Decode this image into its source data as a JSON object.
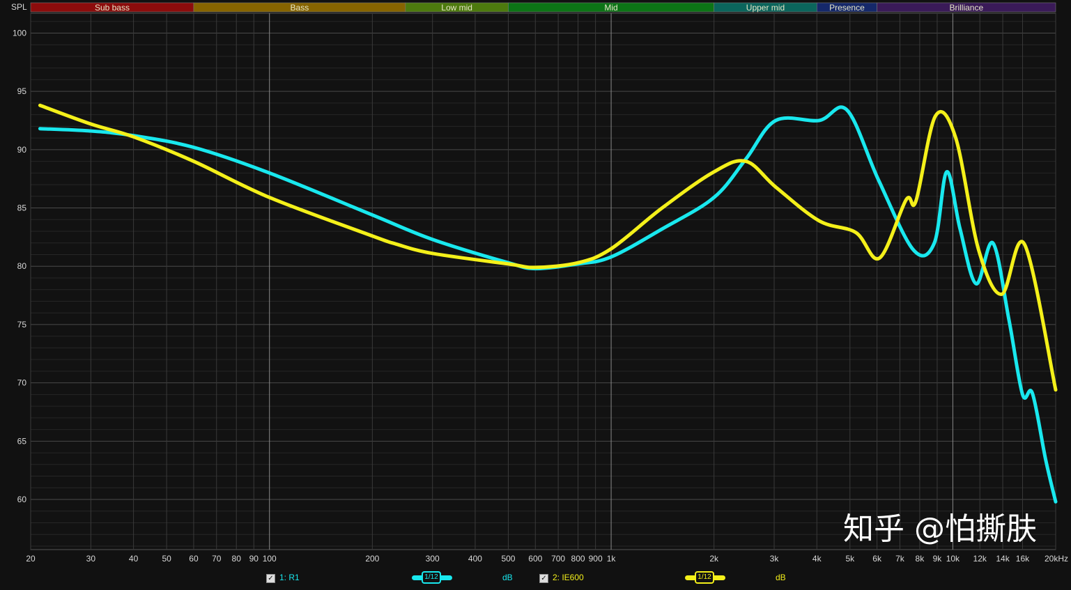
{
  "chart_data": {
    "type": "line",
    "ylabel": "SPL",
    "xunit": "kHz",
    "xscale": "log",
    "xlim": [
      20,
      20000
    ],
    "ylim": [
      55.7,
      101.7
    ],
    "grid": true,
    "yticks": [
      100,
      95,
      90,
      85,
      80,
      75,
      70,
      65,
      60
    ],
    "xticks": [
      {
        "f": 20,
        "label": "20"
      },
      {
        "f": 30,
        "label": "30"
      },
      {
        "f": 40,
        "label": "40"
      },
      {
        "f": 50,
        "label": "50"
      },
      {
        "f": 60,
        "label": "60"
      },
      {
        "f": 70,
        "label": "70"
      },
      {
        "f": 80,
        "label": "80"
      },
      {
        "f": 90,
        "label": "90"
      },
      {
        "f": 100,
        "label": "100"
      },
      {
        "f": 200,
        "label": "200"
      },
      {
        "f": 300,
        "label": "300"
      },
      {
        "f": 400,
        "label": "400"
      },
      {
        "f": 500,
        "label": "500"
      },
      {
        "f": 600,
        "label": "600"
      },
      {
        "f": 700,
        "label": "700"
      },
      {
        "f": 800,
        "label": "800"
      },
      {
        "f": 900,
        "label": "900"
      },
      {
        "f": 1000,
        "label": "1k"
      },
      {
        "f": 2000,
        "label": "2k"
      },
      {
        "f": 3000,
        "label": "3k"
      },
      {
        "f": 4000,
        "label": "4k"
      },
      {
        "f": 5000,
        "label": "5k"
      },
      {
        "f": 6000,
        "label": "6k"
      },
      {
        "f": 7000,
        "label": "7k"
      },
      {
        "f": 8000,
        "label": "8k"
      },
      {
        "f": 9000,
        "label": "9k"
      },
      {
        "f": 10000,
        "label": "10k"
      },
      {
        "f": 12000,
        "label": "12k"
      },
      {
        "f": 14000,
        "label": "14k"
      },
      {
        "f": 16000,
        "label": "16k"
      },
      {
        "f": 20000,
        "label": "20kHz"
      }
    ],
    "bands": [
      {
        "label": "Sub bass",
        "from": 20,
        "to": 60,
        "color": "#8c0c0c"
      },
      {
        "label": "Bass",
        "from": 60,
        "to": 250,
        "color": "#876400"
      },
      {
        "label": "Low mid",
        "from": 250,
        "to": 500,
        "color": "#4d7a0e"
      },
      {
        "label": "Mid",
        "from": 500,
        "to": 2000,
        "color": "#0c7416"
      },
      {
        "label": "Upper mid",
        "from": 2000,
        "to": 4000,
        "color": "#0b655c"
      },
      {
        "label": "Presence",
        "from": 4000,
        "to": 6000,
        "color": "#15286a"
      },
      {
        "label": "Brilliance",
        "from": 6000,
        "to": 20000,
        "color": "#3a1a58"
      }
    ],
    "series": [
      {
        "name": "1: R1",
        "color": "#19e8ee",
        "smoothing": "1/12",
        "unit": "dB",
        "x": [
          21.3,
          30,
          40,
          60,
          100,
          200,
          300,
          500,
          600,
          800,
          1000,
          1410,
          2000,
          2480,
          3030,
          4060,
          4900,
          6060,
          7670,
          8830,
          9600,
          10500,
          11700,
          13100,
          14600,
          16000,
          17100,
          18700,
          20000
        ],
        "y": [
          91.8,
          91.6,
          91.2,
          90.2,
          88.0,
          84.4,
          82.3,
          80.3,
          79.8,
          80.2,
          80.8,
          83.2,
          85.9,
          89.2,
          92.5,
          92.5,
          93.4,
          87.4,
          81.4,
          82.0,
          88.1,
          83.2,
          78.5,
          82.0,
          75.4,
          69.0,
          69.1,
          63.4,
          59.8
        ]
      },
      {
        "name": "2: IE600",
        "color": "#f4f01a",
        "smoothing": "1/12",
        "unit": "dB",
        "x": [
          21.3,
          30,
          40,
          60,
          100,
          200,
          235,
          300,
          500,
          600,
          800,
          1000,
          1410,
          2000,
          2480,
          3030,
          4060,
          5200,
          6100,
          7300,
          7800,
          8900,
          10200,
          11900,
          13900,
          16200,
          20000
        ],
        "y": [
          93.8,
          92.2,
          91.1,
          89.0,
          85.9,
          82.6,
          81.9,
          81.1,
          80.2,
          79.9,
          80.3,
          81.5,
          85.0,
          88.1,
          89.0,
          86.8,
          83.9,
          82.9,
          80.7,
          85.7,
          85.6,
          92.9,
          91.0,
          81.4,
          77.6,
          81.9,
          69.4
        ]
      }
    ]
  },
  "legend": {
    "r1": {
      "label": "1: R1",
      "smoothing": "1/12",
      "unit": "dB",
      "checked": true
    },
    "ie600": {
      "label": "2: IE600",
      "smoothing": "1/12",
      "unit": "dB",
      "checked": true
    }
  },
  "watermark": "知乎 @怕撕肤"
}
